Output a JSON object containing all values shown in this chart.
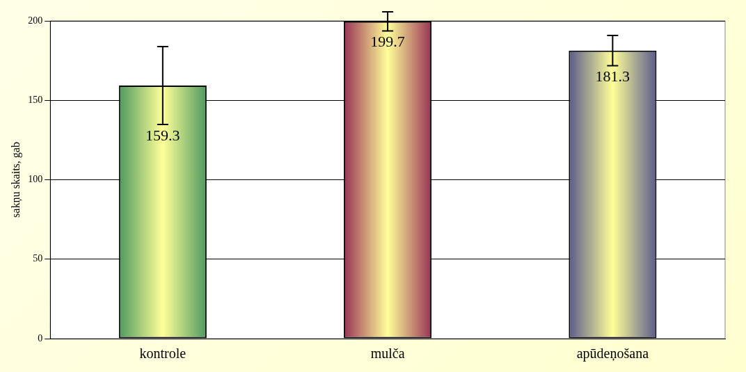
{
  "chart_data": {
    "type": "bar",
    "ylabel": "sakņu skaits, gab",
    "categories": [
      "kontrole",
      "mulča",
      "apūdeņošana"
    ],
    "values": [
      159.3,
      199.7,
      181.3
    ],
    "colors": [
      "#4e9a5e",
      "#993355",
      "#5a5a8c"
    ],
    "errors": [
      24.5,
      6,
      9.5
    ],
    "data_labels": true,
    "ylim": [
      0,
      200
    ],
    "yticks": [
      0,
      50,
      100,
      150,
      200
    ],
    "grid": "y",
    "legend": false
  }
}
